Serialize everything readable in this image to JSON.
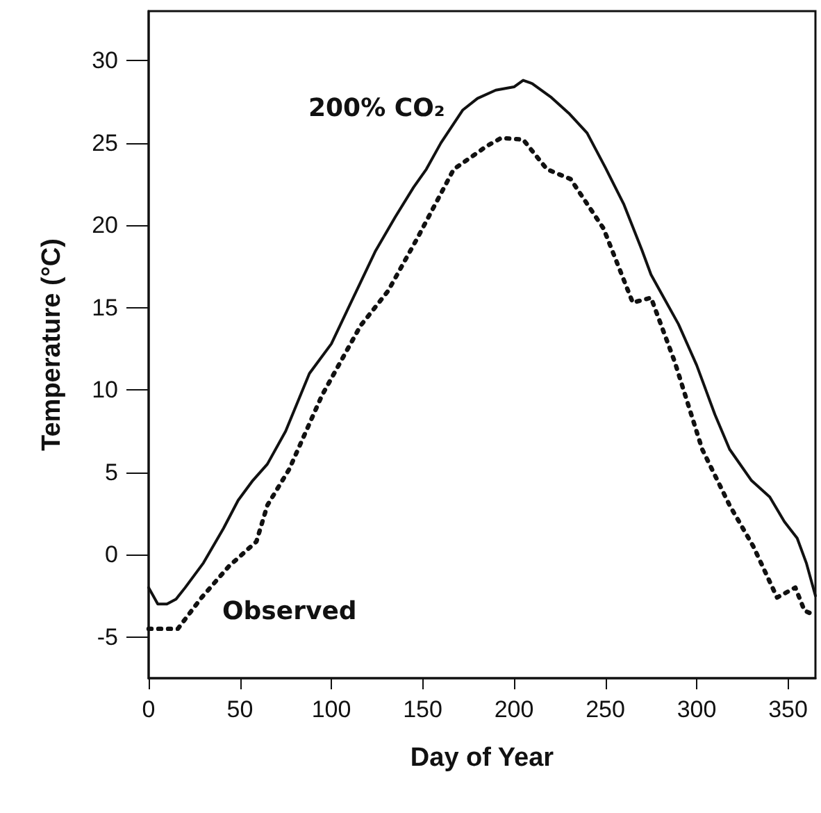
{
  "chart_data": {
    "type": "line",
    "xlabel": "Day of Year",
    "ylabel": "Temperature (°C)",
    "xlim": [
      0,
      365
    ],
    "xticks": [
      0,
      50,
      100,
      150,
      200,
      250,
      300,
      350
    ],
    "ylim": [
      -7.5,
      33
    ],
    "yticks": [
      -5,
      0,
      5,
      10,
      15,
      20,
      25,
      30
    ],
    "marker": "none",
    "series": [
      {
        "name": "200% CO₂",
        "color": "#111111",
        "line_style": "solid",
        "x": [
          0,
          5,
          10,
          15,
          20,
          30,
          41,
          49,
          57,
          65,
          75,
          88,
          100,
          106,
          115,
          124,
          135,
          145,
          152,
          160,
          172,
          180,
          190,
          200,
          205,
          210,
          220,
          230,
          240,
          250,
          260,
          270,
          275,
          280,
          290,
          300,
          310,
          318,
          330,
          340,
          348,
          355,
          360,
          365
        ],
        "values": [
          -2,
          -3,
          -3,
          -2.7,
          -2,
          -0.5,
          1.6,
          3.3,
          4.5,
          5.5,
          7.5,
          11,
          12.8,
          14.2,
          16.3,
          18.4,
          20.5,
          22.3,
          23.4,
          25,
          27,
          27.7,
          28.2,
          28.4,
          28.8,
          28.6,
          27.8,
          26.8,
          25.6,
          23.5,
          21.3,
          18.5,
          17,
          16,
          14,
          11.5,
          8.5,
          6.4,
          4.5,
          3.5,
          2,
          1,
          -0.5,
          -2.5
        ]
      },
      {
        "name": "Observed",
        "color": "#111111",
        "line_style": "dotted",
        "x": [
          0,
          16,
          29,
          44,
          59,
          65,
          77,
          95,
          116,
          131,
          147,
          167,
          185,
          193,
          205,
          218,
          231,
          249,
          265,
          275,
          288,
          303,
          318,
          331,
          344,
          354,
          359,
          365
        ],
        "values": [
          -4.5,
          -4.5,
          -2.6,
          -0.7,
          0.8,
          3,
          5.2,
          9.7,
          13.9,
          16,
          19.2,
          23.4,
          24.8,
          25.3,
          25.2,
          23.4,
          22.8,
          19.8,
          15.3,
          15.6,
          11.7,
          6.4,
          3,
          0.5,
          -2.6,
          -2,
          -3.4,
          -3.7
        ]
      }
    ]
  }
}
